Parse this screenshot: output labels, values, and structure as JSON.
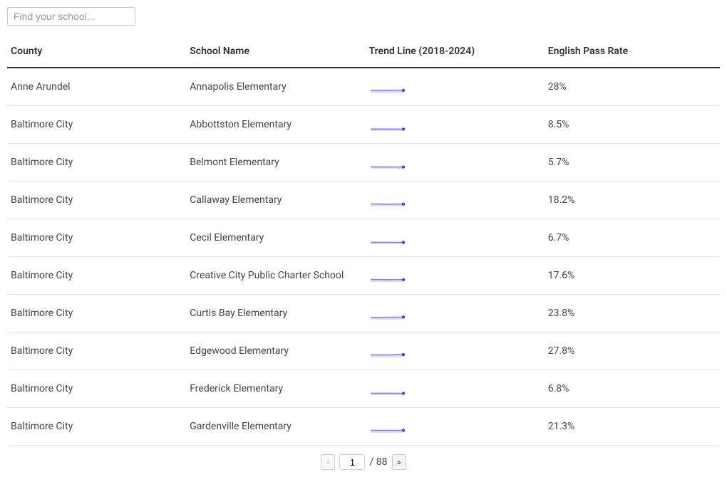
{
  "search": {
    "placeholder": "Find your school..."
  },
  "columns": [
    {
      "key": "county",
      "label": "County",
      "class": "col-county"
    },
    {
      "key": "school",
      "label": "School Name",
      "class": "col-school"
    },
    {
      "key": "trend",
      "label": "Trend Line (2018-2024)",
      "class": "col-trend"
    },
    {
      "key": "rate",
      "label": "English Pass Rate",
      "class": "col-rate"
    }
  ],
  "sparkline": {
    "width": 50,
    "height": 18,
    "stroke_color": "#8a7de8",
    "stroke_width": 1.6,
    "fill_color": "#c8c0f2",
    "fill_opacity": 0.55,
    "dot_color": "#4f3fd6",
    "dot_radius": 2.2
  },
  "rows": [
    {
      "county": "Anne Arundel",
      "school": "Annapolis Elementary",
      "rate": "28%",
      "points": [
        0.3,
        0.28,
        0.3,
        0.32,
        0.3,
        0.28,
        0.28
      ]
    },
    {
      "county": "Baltimore City",
      "school": "Abbottston Elementary",
      "rate": "8.5%",
      "points": [
        0.1,
        0.11,
        0.11,
        0.1,
        0.11,
        0.1,
        0.085
      ]
    },
    {
      "county": "Baltimore City",
      "school": "Belmont Elementary",
      "rate": "5.7%",
      "points": [
        0.08,
        0.08,
        0.07,
        0.08,
        0.07,
        0.07,
        0.057
      ]
    },
    {
      "county": "Baltimore City",
      "school": "Callaway Elementary",
      "rate": "18.2%",
      "points": [
        0.22,
        0.21,
        0.18,
        0.16,
        0.18,
        0.19,
        0.182
      ]
    },
    {
      "county": "Baltimore City",
      "school": "Cecil Elementary",
      "rate": "6.7%",
      "points": [
        0.09,
        0.09,
        0.09,
        0.08,
        0.08,
        0.07,
        0.067
      ]
    },
    {
      "county": "Baltimore City",
      "school": "Creative City Public Charter School",
      "rate": "17.6%",
      "points": [
        0.2,
        0.2,
        0.18,
        0.17,
        0.19,
        0.19,
        0.176
      ]
    },
    {
      "county": "Baltimore City",
      "school": "Curtis Bay Elementary",
      "rate": "23.8%",
      "points": [
        0.15,
        0.16,
        0.17,
        0.18,
        0.2,
        0.22,
        0.238
      ]
    },
    {
      "county": "Baltimore City",
      "school": "Edgewood Elementary",
      "rate": "27.8%",
      "points": [
        0.23,
        0.22,
        0.23,
        0.22,
        0.24,
        0.26,
        0.278
      ]
    },
    {
      "county": "Baltimore City",
      "school": "Frederick Elementary",
      "rate": "6.8%",
      "points": [
        0.08,
        0.08,
        0.09,
        0.08,
        0.08,
        0.07,
        0.068
      ]
    },
    {
      "county": "Baltimore City",
      "school": "Gardenville Elementary",
      "rate": "21.3%",
      "points": [
        0.22,
        0.22,
        0.22,
        0.22,
        0.22,
        0.22,
        0.213
      ]
    }
  ],
  "pagination": {
    "prev_label": "«",
    "next_label": "»",
    "current_page": "1",
    "total_pages": "88",
    "separator": "/"
  }
}
